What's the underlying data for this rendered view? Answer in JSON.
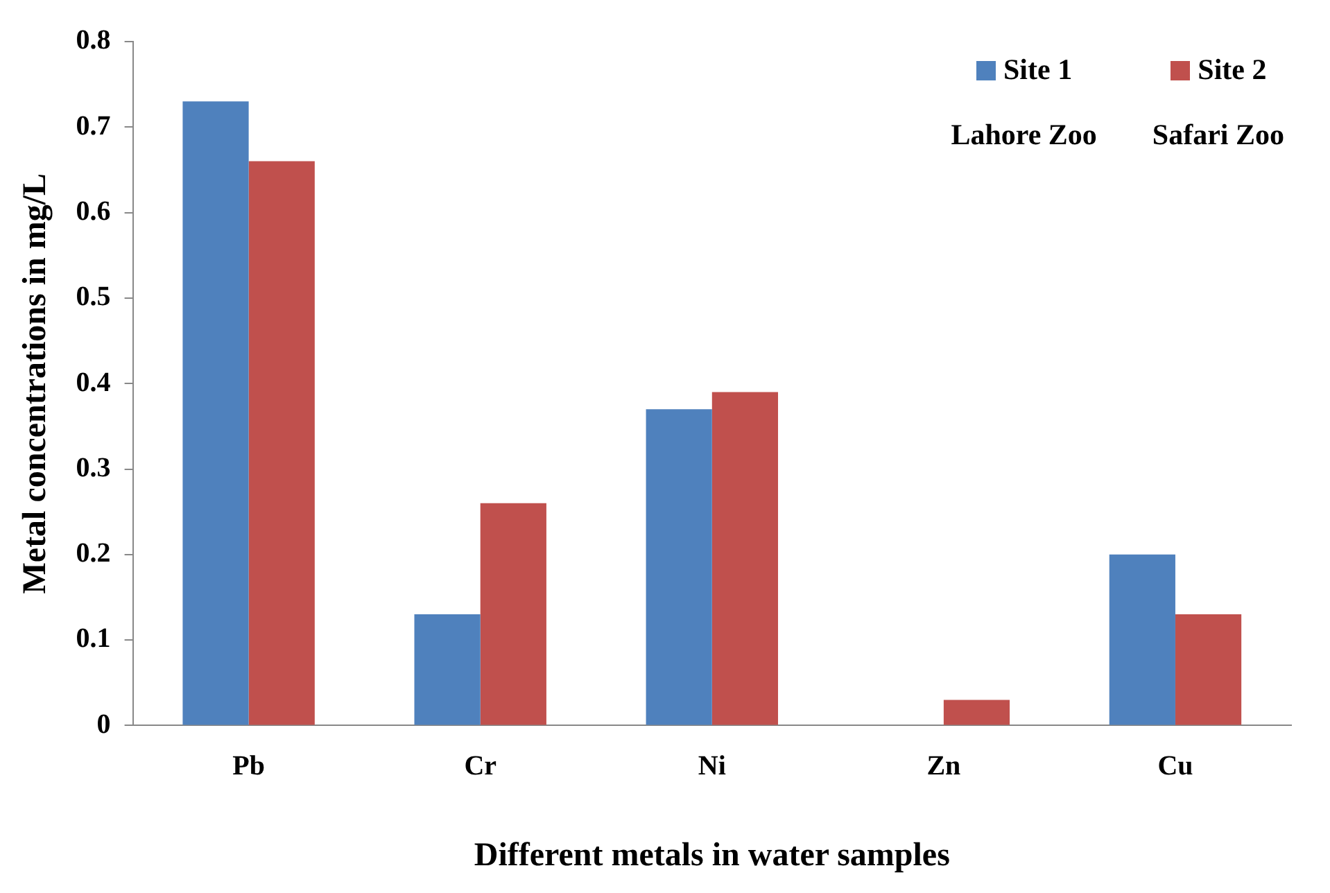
{
  "chart_data": {
    "type": "bar",
    "xlabel": "Different metals in water samples",
    "ylabel": "Metal concentrations in mg/L",
    "categories": [
      "Pb",
      "Cr",
      "Ni",
      "Zn",
      "Cu"
    ],
    "series": [
      {
        "name": "Site 1",
        "color": "#4f81bd",
        "values": [
          0.73,
          0.13,
          0.37,
          0,
          0.2
        ]
      },
      {
        "name": "Site 2",
        "color": "#c0504d",
        "values": [
          0.66,
          0.26,
          0.39,
          0.03,
          0.13
        ]
      }
    ],
    "ylim": [
      0,
      0.8
    ],
    "yticks": [
      0,
      0.1,
      0.2,
      0.3,
      0.4,
      0.5,
      0.6,
      0.7,
      0.8
    ],
    "annotations": [
      "Lahore Zoo",
      "Safari Zoo"
    ],
    "grid": false,
    "legend": "top right"
  }
}
